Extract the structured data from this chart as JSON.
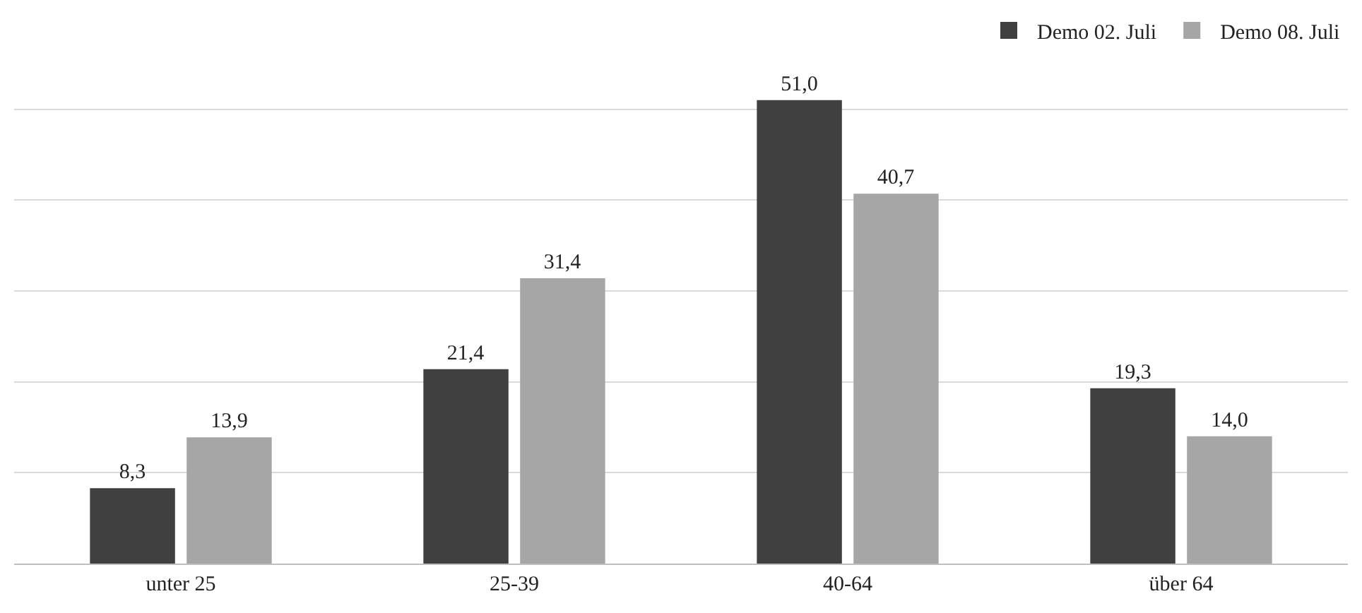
{
  "chart_data": {
    "type": "bar",
    "categories": [
      "unter 25",
      "25-39",
      "40-64",
      "über 64"
    ],
    "series": [
      {
        "name": "Demo 02. Juli",
        "color": "#404040",
        "values": [
          8.3,
          21.4,
          51.0,
          19.3
        ],
        "value_labels": [
          "8,3",
          "21,4",
          "51,0",
          "19,3"
        ]
      },
      {
        "name": "Demo 08. Juli",
        "color": "#a6a6a6",
        "values": [
          13.9,
          31.4,
          40.7,
          14.0
        ],
        "value_labels": [
          "13,9",
          "31,4",
          "40,7",
          "14,0"
        ]
      }
    ],
    "ylim": [
      0,
      60
    ],
    "yticks": [
      {
        "value": 0,
        "label": null
      },
      {
        "value": 10,
        "label": null
      },
      {
        "value": 20,
        "label": null
      },
      {
        "value": 30,
        "label": null
      },
      {
        "value": 40,
        "label": null
      },
      {
        "value": 50,
        "label": null
      }
    ],
    "grid": "y",
    "legend": "top right",
    "tick_labels": "x"
  }
}
